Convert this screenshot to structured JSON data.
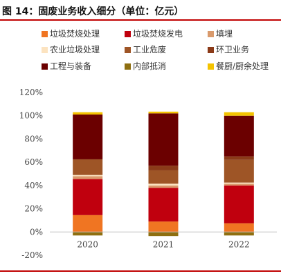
{
  "figure_title": "图 14：固废业务收入细分（单位：亿元）",
  "chart_data": {
    "type": "bar",
    "stacked": true,
    "categories": [
      "2020",
      "2021",
      "2022"
    ],
    "ylim": [
      -20,
      120
    ],
    "yticks": [
      -20,
      0,
      20,
      40,
      60,
      80,
      100,
      120
    ],
    "ytick_labels": [
      "-20%",
      "0%",
      "20%",
      "40%",
      "60%",
      "80%",
      "100%",
      "120%"
    ],
    "xlabel": "",
    "ylabel": "",
    "grid": false,
    "legend_position": "top",
    "series": [
      {
        "name": "垃圾焚烧处理",
        "color": "#f07522",
        "values": [
          14.5,
          9.0,
          7.5
        ]
      },
      {
        "name": "垃圾焚烧发电",
        "color": "#c0000e",
        "values": [
          31.0,
          29.0,
          32.5
        ]
      },
      {
        "name": "填埋",
        "color": "#d99a6c",
        "values": [
          2.5,
          2.0,
          1.5
        ]
      },
      {
        "name": "农业垃圾处理",
        "color": "#fce3c0",
        "values": [
          1.0,
          1.5,
          1.0
        ]
      },
      {
        "name": "工业危废",
        "color": "#9e5526",
        "values": [
          13.5,
          11.5,
          19.5
        ]
      },
      {
        "name": "环卫业务",
        "color": "#8b3a18",
        "values": [
          0,
          4.0,
          3.0
        ]
      },
      {
        "name": "工程与装备",
        "color": "#6b0000",
        "values": [
          38.5,
          45.0,
          35.0
        ]
      },
      {
        "name": "内部抵消",
        "color": "#8e6f10",
        "values": [
          -3.0,
          -3.5,
          -3.0
        ]
      },
      {
        "name": "餐厨/厨余处理",
        "color": "#f4c300",
        "values": [
          2.0,
          1.5,
          3.0
        ]
      }
    ]
  }
}
